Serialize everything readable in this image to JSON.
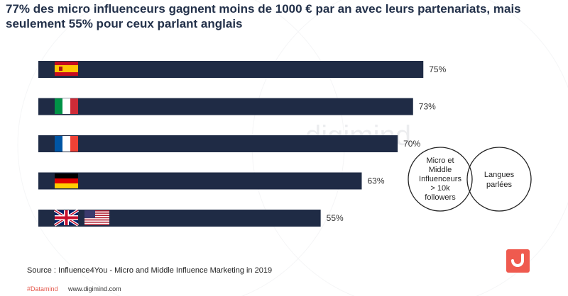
{
  "title_lines": [
    "77% des micro influenceurs gagnent moins de 1000 € par an avec leurs partenariats, mais",
    "seulement 55% pour ceux parlant anglais"
  ],
  "chart_data": {
    "type": "bar",
    "orientation": "horizontal",
    "categories": [
      "Espagne",
      "Italie",
      "France",
      "Allemagne",
      "Royaume-Uni / États-Unis"
    ],
    "values": [
      75,
      73,
      70,
      63,
      55
    ],
    "value_labels": [
      "75%",
      "73%",
      "70%",
      "63%",
      "55%"
    ],
    "xlim": [
      0,
      100
    ],
    "bar_color": "#1f2b45"
  },
  "venn": {
    "left_lines": [
      "Micro et",
      "Middle",
      "Influenceurs",
      "> 10k",
      "followers"
    ],
    "right_lines": [
      "Langues",
      "parlées"
    ]
  },
  "source": "Source : Influence4You - Micro and Middle Influence Marketing in 2019",
  "footer": {
    "tag": "#Datamind",
    "site": "www.digimind.com"
  },
  "watermark": "digimind",
  "colors": {
    "bar": "#1f2b45",
    "title": "#23314a",
    "accent": "#ef5a4f"
  }
}
